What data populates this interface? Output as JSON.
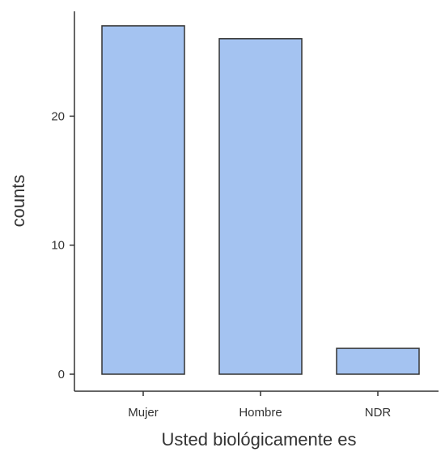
{
  "chart_data": {
    "type": "bar",
    "categories": [
      "Mujer",
      "Hombre",
      "NDR"
    ],
    "values": [
      27,
      26,
      2
    ],
    "xlabel": "Usted biológicamente es",
    "ylabel": "counts",
    "ylim": [
      0,
      28.2
    ],
    "yticks": [
      0,
      10,
      20
    ],
    "grid": false,
    "colors": {
      "bar_fill": "#a4c3f1",
      "bar_stroke": "#333333",
      "axis": "#333333"
    }
  }
}
